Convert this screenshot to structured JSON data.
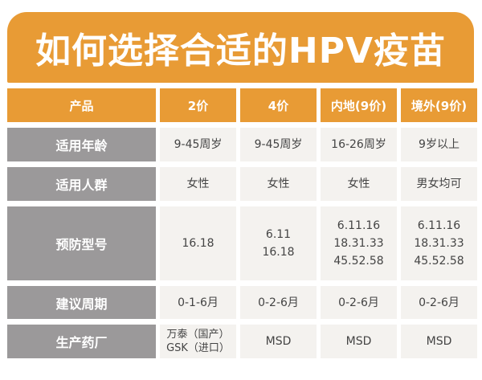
{
  "title": "如何选择合适的HPV疫苗",
  "colors": {
    "accent": "#E89B35",
    "label_bg": "#9b999a",
    "cell_bg": "#f4f2ef"
  },
  "headers": [
    "产品",
    "2价",
    "4价",
    "内地(9价)",
    "境外(9价)"
  ],
  "rows": [
    {
      "label": "适用年龄",
      "values": [
        "9-45周岁",
        "9-45周岁",
        "16-26周岁",
        "9岁以上"
      ]
    },
    {
      "label": "适用人群",
      "values": [
        "女性",
        "女性",
        "女性",
        "男女均可"
      ]
    },
    {
      "label": "预防型号",
      "values": [
        "16.18",
        "6.11\n16.18",
        "6.11.16\n18.31.33\n45.52.58",
        "6.11.16\n18.31.33\n45.52.58"
      ]
    },
    {
      "label": "建议周期",
      "values": [
        "0-1-6月",
        "0-2-6月",
        "0-2-6月",
        "0-2-6月"
      ]
    },
    {
      "label": "生产药厂",
      "values": [
        "万泰（国产）\nGSK（进口）",
        "MSD",
        "MSD",
        "MSD"
      ]
    }
  ]
}
